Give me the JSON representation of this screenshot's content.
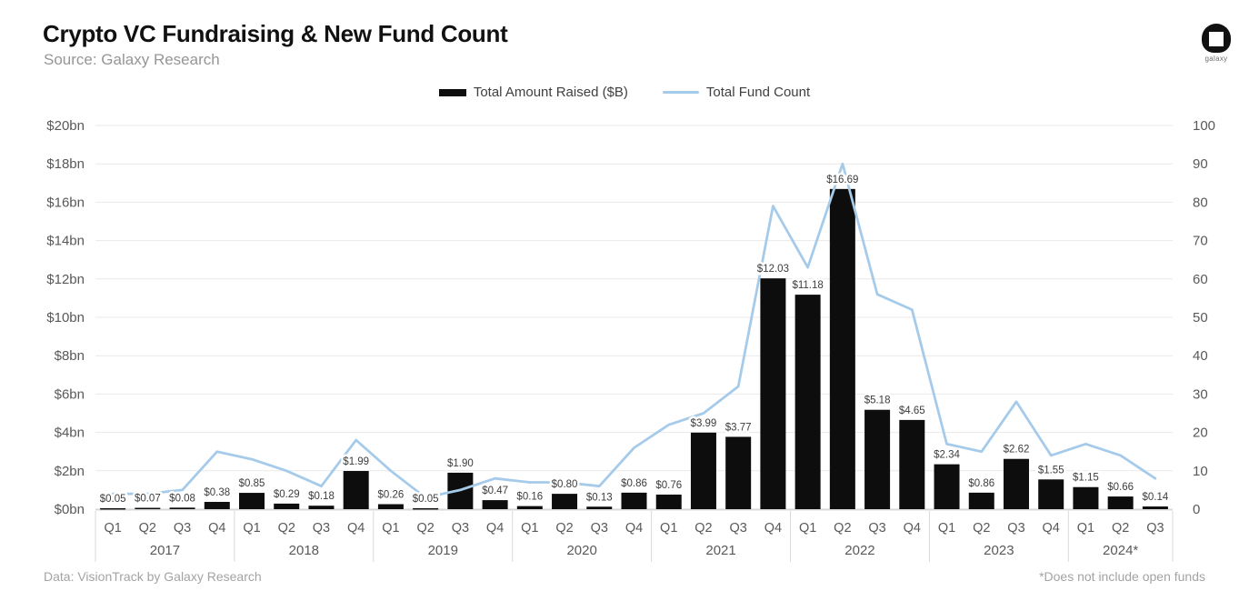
{
  "header": {
    "source": "Source: Galaxy Research"
  },
  "logo": {
    "label": "galaxy"
  },
  "legend": {
    "bar_label": "Total Amount Raised ($B)",
    "line_label": "Total Fund Count"
  },
  "footer": {
    "left": "Data: VisionTrack by Galaxy Research",
    "right": "*Does not include open funds"
  },
  "chart_data": {
    "type": "bar+line combo",
    "title": "Crypto VC Fundraising & New Fund Count",
    "bar_series_name": "Total Amount Raised ($B)",
    "line_series_name": "Total Fund Count",
    "bar_color": "#0d0d0d",
    "line_color": "#a6cbea",
    "grid_color": "#e9e9e9",
    "axis_text_color": "#595959",
    "bar_label_color": "#3d3d3d",
    "left_axis": {
      "min": 0,
      "max": 20,
      "tick_labels": [
        "$0bn",
        "$2bn",
        "$4bn",
        "$6bn",
        "$8bn",
        "$10bn",
        "$12bn",
        "$14bn",
        "$16bn",
        "$18bn",
        "$20bn"
      ]
    },
    "right_axis": {
      "min": 0,
      "max": 100,
      "tick_labels": [
        "0",
        "10",
        "20",
        "30",
        "40",
        "50",
        "60",
        "70",
        "80",
        "90",
        "100"
      ]
    },
    "years": [
      {
        "label": "2017",
        "quarters": [
          {
            "q": "Q1",
            "amount": 0.05,
            "amount_label": "$0.05",
            "fund_count": 4
          },
          {
            "q": "Q2",
            "amount": 0.07,
            "amount_label": "$0.07",
            "fund_count": 4
          },
          {
            "q": "Q3",
            "amount": 0.08,
            "amount_label": "$0.08",
            "fund_count": 5
          },
          {
            "q": "Q4",
            "amount": 0.38,
            "amount_label": "$0.38",
            "fund_count": 15
          }
        ]
      },
      {
        "label": "2018",
        "quarters": [
          {
            "q": "Q1",
            "amount": 0.85,
            "amount_label": "$0.85",
            "fund_count": 13
          },
          {
            "q": "Q2",
            "amount": 0.29,
            "amount_label": "$0.29",
            "fund_count": 10
          },
          {
            "q": "Q3",
            "amount": 0.18,
            "amount_label": "$0.18",
            "fund_count": 6
          },
          {
            "q": "Q4",
            "amount": 1.99,
            "amount_label": "$1.99",
            "fund_count": 18
          }
        ]
      },
      {
        "label": "2019",
        "quarters": [
          {
            "q": "Q1",
            "amount": 0.26,
            "amount_label": "$0.26",
            "fund_count": 10
          },
          {
            "q": "Q2",
            "amount": 0.05,
            "amount_label": "$0.05",
            "fund_count": 3
          },
          {
            "q": "Q3",
            "amount": 1.9,
            "amount_label": "$1.90",
            "fund_count": 5
          },
          {
            "q": "Q4",
            "amount": 0.47,
            "amount_label": "$0.47",
            "fund_count": 8
          }
        ]
      },
      {
        "label": "2020",
        "quarters": [
          {
            "q": "Q1",
            "amount": 0.16,
            "amount_label": "$0.16",
            "fund_count": 7
          },
          {
            "q": "Q2",
            "amount": 0.8,
            "amount_label": "$0.80",
            "fund_count": 7
          },
          {
            "q": "Q3",
            "amount": 0.13,
            "amount_label": "$0.13",
            "fund_count": 6
          },
          {
            "q": "Q4",
            "amount": 0.86,
            "amount_label": "$0.86",
            "fund_count": 16
          }
        ]
      },
      {
        "label": "2021",
        "quarters": [
          {
            "q": "Q1",
            "amount": 0.76,
            "amount_label": "$0.76",
            "fund_count": 22
          },
          {
            "q": "Q2",
            "amount": 3.99,
            "amount_label": "$3.99",
            "fund_count": 25
          },
          {
            "q": "Q3",
            "amount": 3.77,
            "amount_label": "$3.77",
            "fund_count": 32
          },
          {
            "q": "Q4",
            "amount": 12.03,
            "amount_label": "$12.03",
            "fund_count": 79
          }
        ]
      },
      {
        "label": "2022",
        "quarters": [
          {
            "q": "Q1",
            "amount": 11.18,
            "amount_label": "$11.18",
            "fund_count": 63
          },
          {
            "q": "Q2",
            "amount": 16.69,
            "amount_label": "$16.69",
            "fund_count": 90
          },
          {
            "q": "Q3",
            "amount": 5.18,
            "amount_label": "$5.18",
            "fund_count": 56
          },
          {
            "q": "Q4",
            "amount": 4.65,
            "amount_label": "$4.65",
            "fund_count": 52
          }
        ]
      },
      {
        "label": "2023",
        "quarters": [
          {
            "q": "Q1",
            "amount": 2.34,
            "amount_label": "$2.34",
            "fund_count": 17
          },
          {
            "q": "Q2",
            "amount": 0.86,
            "amount_label": "$0.86",
            "fund_count": 15
          },
          {
            "q": "Q3",
            "amount": 2.62,
            "amount_label": "$2.62",
            "fund_count": 28
          },
          {
            "q": "Q4",
            "amount": 1.55,
            "amount_label": "$1.55",
            "fund_count": 14
          }
        ]
      },
      {
        "label": "2024*",
        "quarters": [
          {
            "q": "Q1",
            "amount": 1.15,
            "amount_label": "$1.15",
            "fund_count": 17
          },
          {
            "q": "Q2",
            "amount": 0.66,
            "amount_label": "$0.66",
            "fund_count": 14
          },
          {
            "q": "Q3",
            "amount": 0.14,
            "amount_label": "$0.14",
            "fund_count": 8
          }
        ]
      }
    ],
    "layout": {
      "grid": true,
      "legend_position": "top-center"
    }
  }
}
